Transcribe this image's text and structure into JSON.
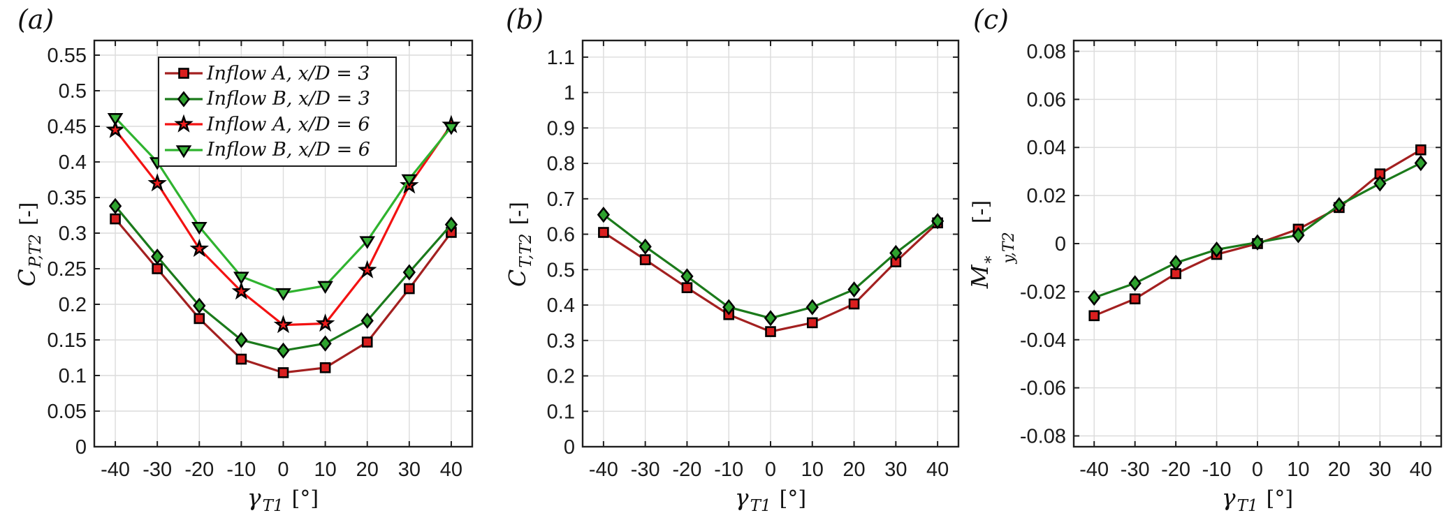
{
  "figure": {
    "background": "#ffffff",
    "style": {
      "axis_color": "#1f1f1f",
      "grid_color": "#dcdcdc",
      "tick_label_color": "#1a1a1a",
      "legend_border_color": "#1a1a1a",
      "legend_background": "#ffffff",
      "marker_edge_color": "#000000"
    }
  },
  "chart_data": [
    {
      "type": "line",
      "panel_label": "(a)",
      "xlabel": {
        "symbol": "γ",
        "sub": "T1",
        "unit": "[°]"
      },
      "ylabel": {
        "symbol": "C",
        "sub": "P,T2",
        "unit": "[-]"
      },
      "x": [
        -40,
        -30,
        -20,
        -10,
        0,
        10,
        20,
        30,
        40
      ],
      "xtick_labels": [
        "-40",
        "-30",
        "-20",
        "-10",
        "0",
        "10",
        "20",
        "30",
        "40"
      ],
      "ytick_labels": [
        "0",
        "0.05",
        "0.1",
        "0.15",
        "0.2",
        "0.25",
        "0.3",
        "0.35",
        "0.4",
        "0.45",
        "0.5",
        "0.55"
      ],
      "xlim": [
        -45,
        45
      ],
      "ylim": [
        0,
        0.5706
      ],
      "grid": true,
      "legend": {
        "visible": true,
        "position": "top-center"
      },
      "series": [
        {
          "name": "Inflow A, x/D = 3",
          "line_color": "#a32020",
          "marker": "square",
          "marker_fill": "#da1f1f",
          "values": [
            0.32,
            0.25,
            0.18,
            0.123,
            0.104,
            0.111,
            0.147,
            0.222,
            0.301
          ]
        },
        {
          "name": "Inflow B, x/D = 3",
          "line_color": "#1b7a1b",
          "marker": "diamond",
          "marker_fill": "#2ea22e",
          "values": [
            0.338,
            0.267,
            0.198,
            0.15,
            0.135,
            0.145,
            0.177,
            0.245,
            0.312
          ]
        },
        {
          "name": "Inflow A, x/D = 6",
          "line_color": "#f31212",
          "marker": "star",
          "marker_fill": "#ef1c1c",
          "values": [
            0.445,
            0.37,
            0.278,
            0.218,
            0.171,
            0.173,
            0.248,
            0.367,
            0.452
          ]
        },
        {
          "name": "Inflow B, x/D = 6",
          "line_color": "#2fb32f",
          "marker": "triangle-down",
          "marker_fill": "#39b439",
          "values": [
            0.462,
            0.4,
            0.309,
            0.239,
            0.216,
            0.226,
            0.289,
            0.376,
            0.449
          ]
        }
      ]
    },
    {
      "type": "line",
      "panel_label": "(b)",
      "xlabel": {
        "symbol": "γ",
        "sub": "T1",
        "unit": "[°]"
      },
      "ylabel": {
        "symbol": "C",
        "sub": "T,T2",
        "unit": "[-]"
      },
      "x": [
        -40,
        -30,
        -20,
        -10,
        0,
        10,
        20,
        30,
        40
      ],
      "xtick_labels": [
        "-40",
        "-30",
        "-20",
        "-10",
        "0",
        "10",
        "20",
        "30",
        "40"
      ],
      "ytick_labels": [
        "0",
        "0.1",
        "0.2",
        "0.3",
        "0.4",
        "0.5",
        "0.6",
        "0.7",
        "0.8",
        "0.9",
        "1",
        "1.1"
      ],
      "xlim": [
        -45,
        45
      ],
      "ylim": [
        0,
        1.147
      ],
      "grid": true,
      "legend": {
        "visible": false
      },
      "series": [
        {
          "name": "Inflow A, x/D = 3",
          "line_color": "#a32020",
          "marker": "square",
          "marker_fill": "#da1f1f",
          "values": [
            0.605,
            0.528,
            0.449,
            0.373,
            0.325,
            0.35,
            0.403,
            0.522,
            0.632
          ]
        },
        {
          "name": "Inflow B, x/D = 3",
          "line_color": "#1b7a1b",
          "marker": "diamond",
          "marker_fill": "#2ea22e",
          "values": [
            0.655,
            0.565,
            0.481,
            0.394,
            0.363,
            0.394,
            0.444,
            0.547,
            0.637
          ]
        }
      ]
    },
    {
      "type": "line",
      "panel_label": "(c)",
      "xlabel": {
        "symbol": "γ",
        "sub": "T1",
        "unit": "[°]"
      },
      "ylabel": {
        "symbol": "M",
        "sup": "*",
        "sub": "y,T2",
        "unit": "[-]"
      },
      "x": [
        -40,
        -30,
        -20,
        -10,
        0,
        10,
        20,
        30,
        40
      ],
      "xtick_labels": [
        "-40",
        "-30",
        "-20",
        "-10",
        "0",
        "10",
        "20",
        "30",
        "40"
      ],
      "ytick_labels": [
        "-0.08",
        "-0.06",
        "-0.04",
        "-0.02",
        "0",
        "0.02",
        "0.04",
        "0.06",
        "0.08"
      ],
      "xlim": [
        -45,
        45
      ],
      "ylim": [
        -0.0845,
        0.0845
      ],
      "grid": true,
      "legend": {
        "visible": false
      },
      "series": [
        {
          "name": "Inflow A, x/D = 3",
          "line_color": "#a32020",
          "marker": "square",
          "marker_fill": "#da1f1f",
          "values": [
            -0.03,
            -0.023,
            -0.0125,
            -0.0045,
            0.0,
            0.006,
            0.015,
            0.029,
            0.039
          ]
        },
        {
          "name": "Inflow B, x/D = 3",
          "line_color": "#1b7a1b",
          "marker": "diamond",
          "marker_fill": "#2ea22e",
          "values": [
            -0.0225,
            -0.0165,
            -0.008,
            -0.0025,
            0.0005,
            0.0035,
            0.016,
            0.025,
            0.0335
          ]
        }
      ]
    }
  ]
}
